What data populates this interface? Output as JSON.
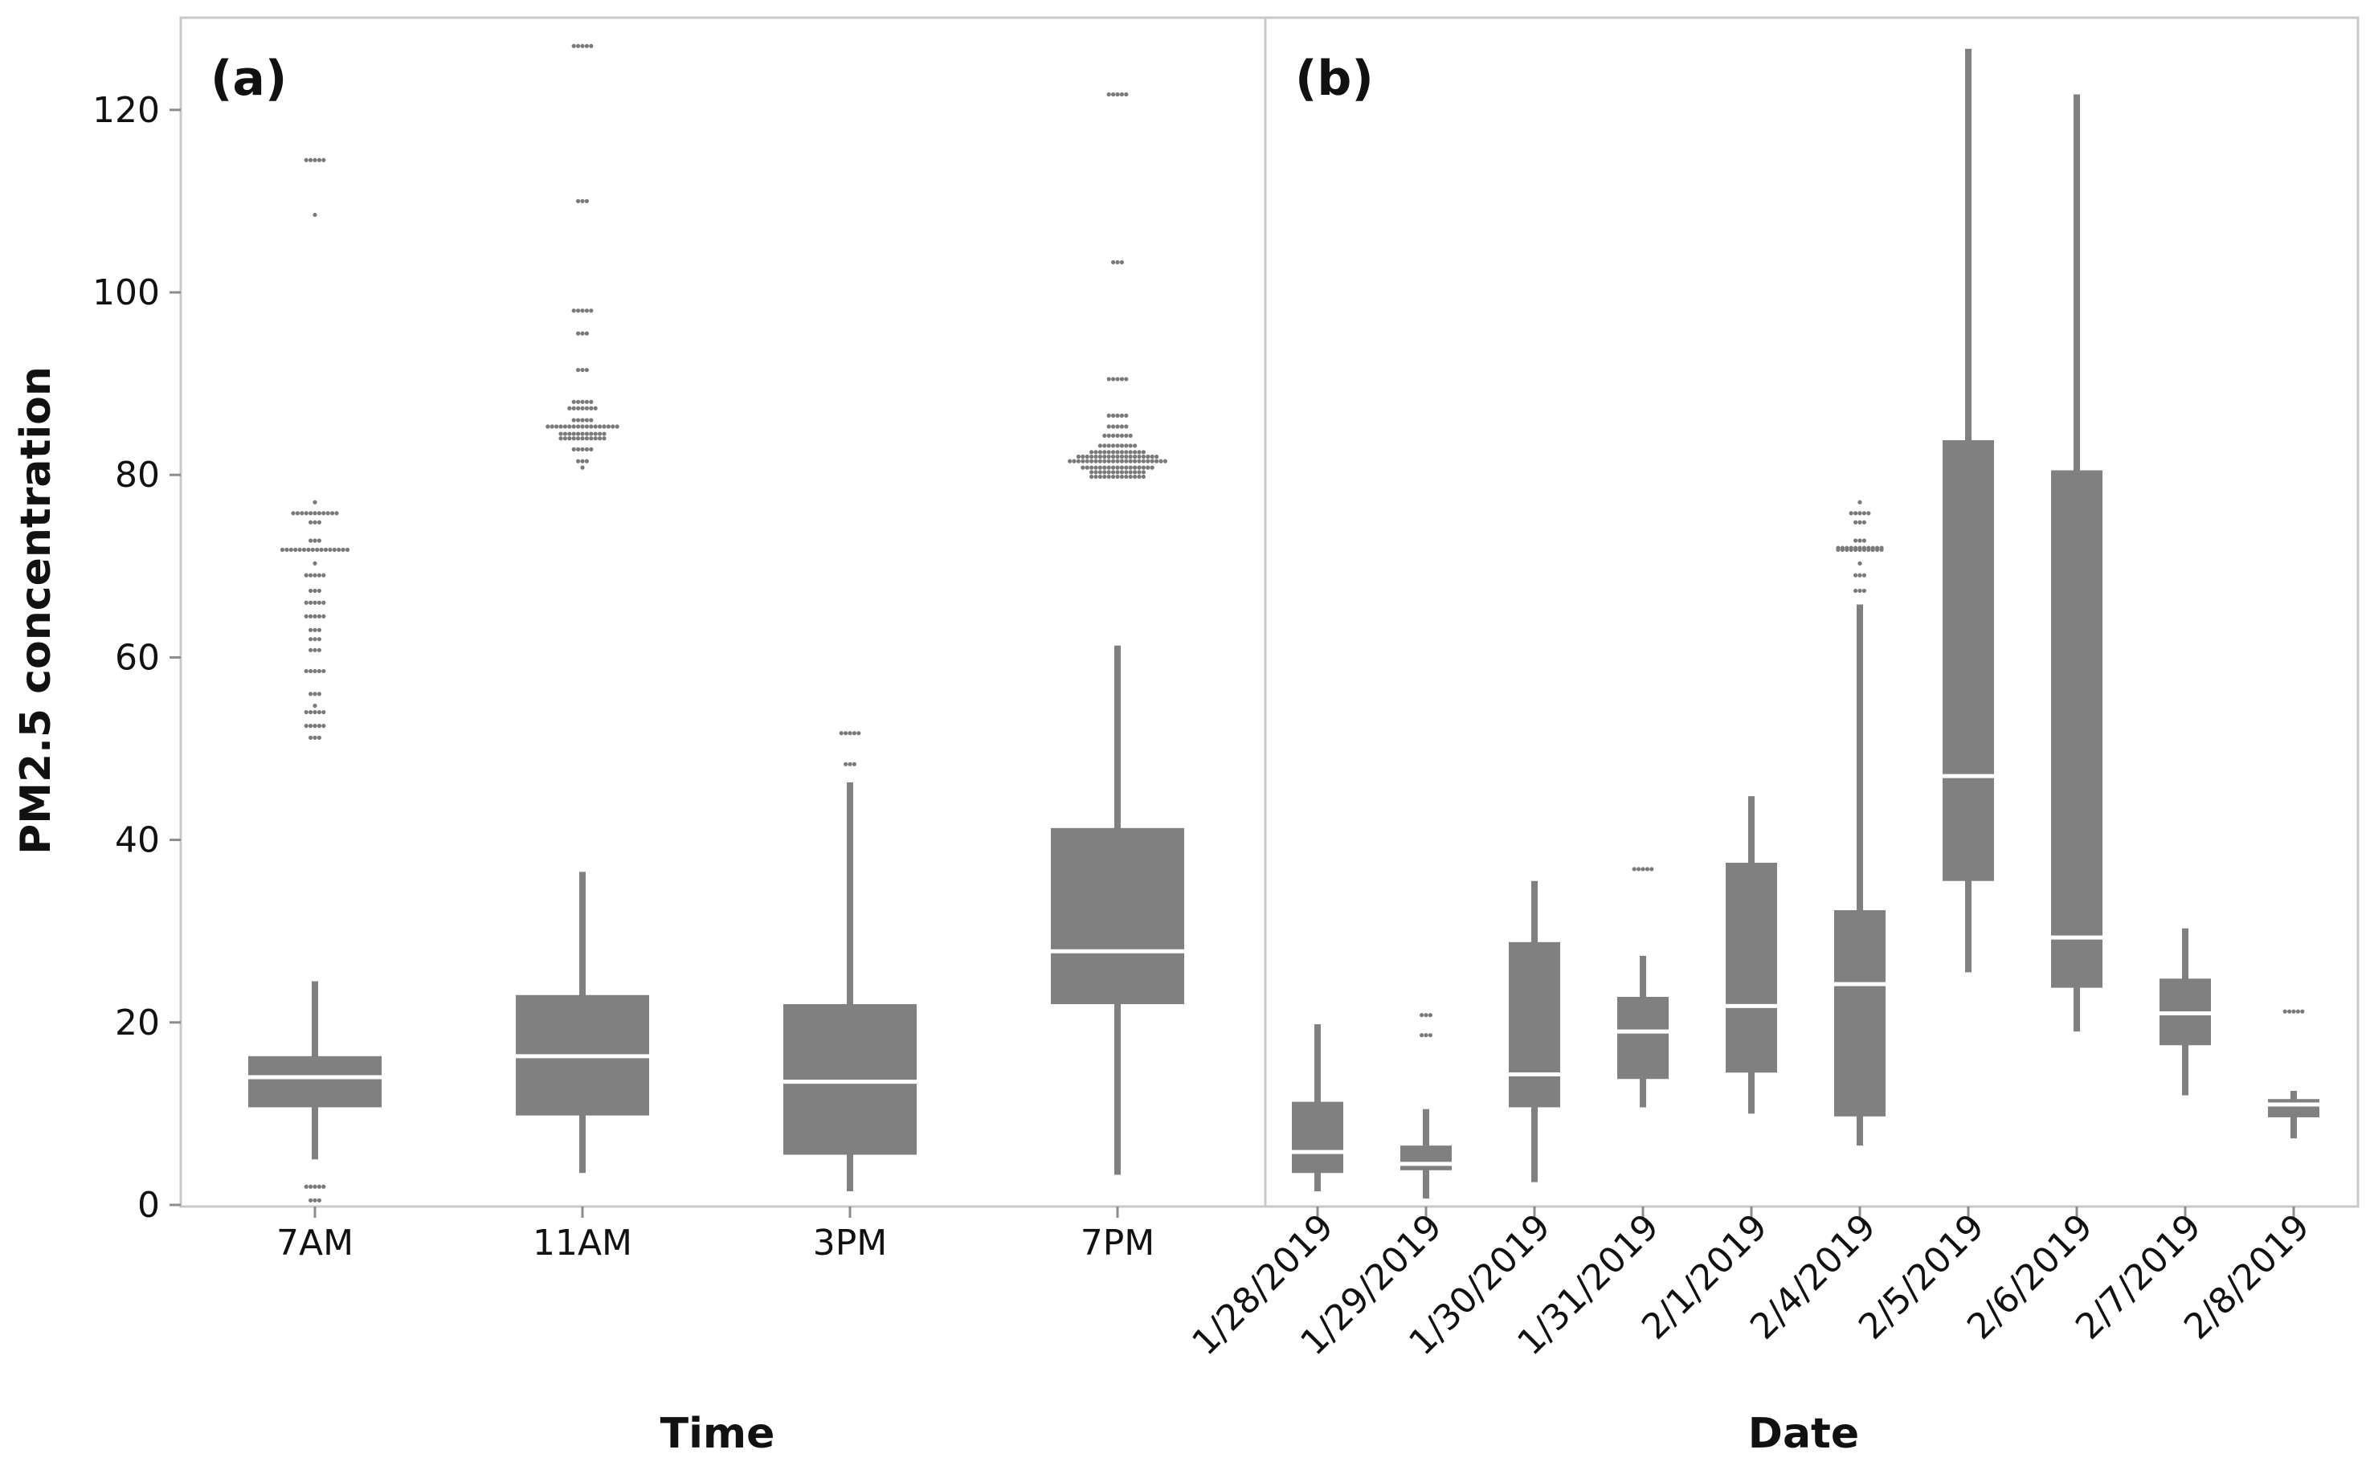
{
  "colors": {
    "box": "#808080",
    "median": "#ffffff",
    "frame": "#c8c8c8",
    "axis": "#8c8c8c",
    "text": "#111111"
  },
  "chart_data": {
    "type": "boxplot",
    "ylabel": "PM2.5 concentration",
    "ylim": [
      0,
      127
    ],
    "yticks": [
      0,
      20,
      40,
      60,
      80,
      100,
      120
    ],
    "panels": [
      {
        "label": "(a)",
        "xlabel": "Time",
        "categories": [
          "7AM",
          "11AM",
          "3PM",
          "7PM"
        ],
        "boxes": [
          {
            "min": 5,
            "q1": 10.7,
            "median": 14,
            "q3": 16.3,
            "max": 24.5,
            "outliers": [
              [
                114.5,
                5
              ],
              [
                108.5,
                1
              ],
              [
                77,
                1
              ],
              [
                75.8,
                11
              ],
              [
                74.8,
                3
              ],
              [
                72.8,
                3
              ],
              [
                71.8,
                16
              ],
              [
                70.3,
                1
              ],
              [
                69,
                5
              ],
              [
                67.3,
                3
              ],
              [
                66,
                5
              ],
              [
                64.5,
                5
              ],
              [
                63,
                3
              ],
              [
                62,
                3
              ],
              [
                60.8,
                3
              ],
              [
                58.5,
                5
              ],
              [
                56,
                3
              ],
              [
                54.7,
                1
              ],
              [
                54,
                5
              ],
              [
                52.5,
                5
              ],
              [
                51.2,
                3
              ],
              [
                2,
                5
              ],
              [
                0.5,
                3
              ]
            ]
          },
          {
            "min": 3.5,
            "q1": 9.8,
            "median": 16.3,
            "q3": 23,
            "max": 36.5,
            "outliers": [
              [
                127,
                5
              ],
              [
                110,
                3
              ],
              [
                98,
                5
              ],
              [
                95.5,
                3
              ],
              [
                91.5,
                3
              ],
              [
                88,
                5
              ],
              [
                87.3,
                7
              ],
              [
                86,
                5
              ],
              [
                85.3,
                17
              ],
              [
                84.5,
                11
              ],
              [
                84,
                11
              ],
              [
                82.8,
                5
              ],
              [
                81.5,
                3
              ],
              [
                80.8,
                1
              ]
            ]
          },
          {
            "min": 1.5,
            "q1": 5.5,
            "median": 13.5,
            "q3": 22,
            "max": 46.3,
            "outliers": [
              [
                51.7,
                5
              ],
              [
                48.3,
                3
              ]
            ]
          },
          {
            "min": 3.3,
            "q1": 22,
            "median": 27.8,
            "q3": 41.3,
            "max": 61.3,
            "outliers": [
              [
                121.7,
                5
              ],
              [
                103.3,
                3
              ],
              [
                90.5,
                5
              ],
              [
                86.5,
                5
              ],
              [
                85.3,
                5
              ],
              [
                84.3,
                7
              ],
              [
                83.2,
                9
              ],
              [
                82.5,
                13
              ],
              [
                82,
                19
              ],
              [
                81.5,
                23
              ],
              [
                80.8,
                17
              ],
              [
                80.3,
                13
              ],
              [
                79.8,
                13
              ]
            ]
          }
        ]
      },
      {
        "label": "(b)",
        "xlabel": "Date",
        "categories": [
          "1/28/2019",
          "1/29/2019",
          "1/30/2019",
          "1/31/2019",
          "2/1/2019",
          "2/4/2019",
          "2/5/2019",
          "2/6/2019",
          "2/7/2019",
          "2/8/2019"
        ],
        "boxes": [
          {
            "min": 1.5,
            "q1": 3.5,
            "median": 5.8,
            "q3": 11.3,
            "max": 19.8,
            "outliers": []
          },
          {
            "min": 0.7,
            "q1": 3.8,
            "median": 4.5,
            "q3": 6.5,
            "max": 10.5,
            "outliers": [
              [
                20.8,
                3
              ],
              [
                18.6,
                3
              ]
            ]
          },
          {
            "min": 2.5,
            "q1": 10.7,
            "median": 14.3,
            "q3": 28.8,
            "max": 35.5,
            "outliers": []
          },
          {
            "min": 10.7,
            "q1": 13.8,
            "median": 19,
            "q3": 22.8,
            "max": 27.3,
            "outliers": [
              [
                36.8,
                5
              ]
            ]
          },
          {
            "min": 10,
            "q1": 14.5,
            "median": 21.8,
            "q3": 37.5,
            "max": 44.8,
            "outliers": []
          },
          {
            "min": 6.5,
            "q1": 9.7,
            "median": 24.2,
            "q3": 32.3,
            "max": 65.8,
            "outliers": [
              [
                77,
                1
              ],
              [
                75.8,
                5
              ],
              [
                74.8,
                3
              ],
              [
                72.8,
                3
              ],
              [
                72,
                11
              ],
              [
                71.8,
                11
              ],
              [
                70.3,
                1
              ],
              [
                69,
                3
              ],
              [
                67.3,
                3
              ]
            ]
          },
          {
            "min": 25.5,
            "q1": 35.5,
            "median": 47,
            "q3": 83.8,
            "max": 126.7,
            "outliers": []
          },
          {
            "min": 19,
            "q1": 23.8,
            "median": 29.3,
            "q3": 80.5,
            "max": 121.7,
            "outliers": []
          },
          {
            "min": 12,
            "q1": 17.5,
            "median": 21,
            "q3": 24.8,
            "max": 30.3,
            "outliers": []
          },
          {
            "min": 7.3,
            "q1": 9.6,
            "median": 11,
            "q3": 11.6,
            "max": 12.5,
            "outliers": [
              [
                21.2,
                5
              ]
            ]
          }
        ]
      }
    ]
  }
}
